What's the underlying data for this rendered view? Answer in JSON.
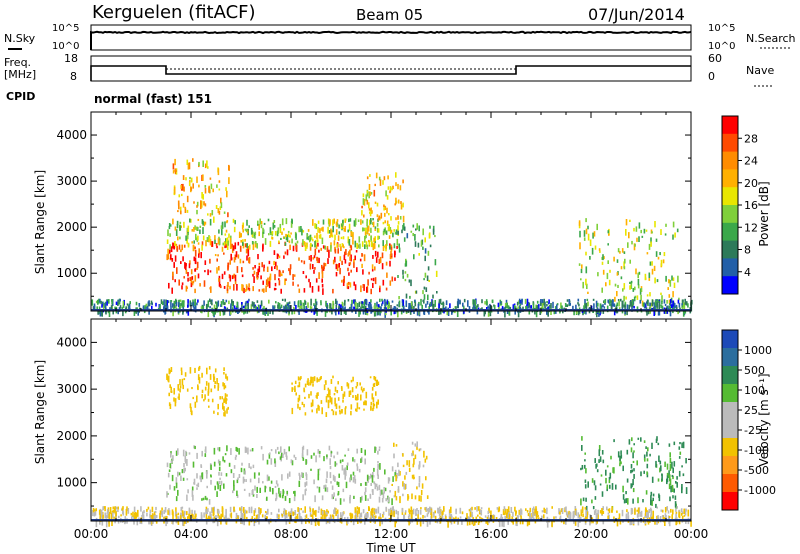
{
  "header": {
    "station": "Kerguelen (fitACF)",
    "beam": "Beam 05",
    "date": "07/Jun/2014"
  },
  "panels": {
    "nsky": {
      "left_label": "N.Sky",
      "right_label": "N.Search",
      "ticks_left": [
        "10^5",
        "10^0"
      ],
      "ticks_right": [
        "10^5",
        "10^0"
      ]
    },
    "freq": {
      "left_label_1": "Freq.",
      "left_label_2": "[MHz]",
      "right_label": "Nave",
      "ticks_left": [
        "18",
        "8"
      ],
      "ticks_right": [
        "60",
        "0"
      ]
    },
    "cpid": {
      "label": "CPID",
      "value": "normal (fast) 151"
    }
  },
  "colorbars": {
    "power": {
      "label": "Power [dB]",
      "ticks": [
        "28",
        "24",
        "20",
        "16",
        "12",
        "8",
        "4"
      ],
      "colors": [
        "#ff0000",
        "#ff4a00",
        "#ff8c00",
        "#ffb000",
        "#e8e600",
        "#7fd03a",
        "#3aa84a",
        "#2d7a5a",
        "#225fa8",
        "#0000ff"
      ]
    },
    "velocity": {
      "label": "Velocity [m s⁻¹]",
      "ticks": [
        "1000",
        "500",
        "100",
        "25",
        "-25",
        "-100",
        "-500",
        "-1000"
      ],
      "colors": [
        "#1d4ab8",
        "#2b6e9e",
        "#2d8a55",
        "#55bb33",
        "#bbbbbb",
        "#bbbbbb",
        "#f2c200",
        "#ff9a1a",
        "#ff5a00",
        "#ff0000"
      ]
    }
  },
  "axes": {
    "ylabel": "Slant Range [km]",
    "xlabel": "Time UT",
    "x_ticks": [
      "00:00",
      "04:00",
      "08:00",
      "12:00",
      "16:00",
      "20:00",
      "00:00"
    ],
    "y_ticks": [
      "4000",
      "3000",
      "2000",
      "1000"
    ]
  },
  "chart_data": [
    {
      "type": "heatmap",
      "title": "Power [dB]",
      "xlabel": "Time UT",
      "ylabel": "Slant Range [km]",
      "x_range_hours": [
        0,
        24
      ],
      "ylim": [
        180,
        4500
      ],
      "colorbar_ticks": [
        4,
        8,
        12,
        16,
        20,
        24,
        28
      ],
      "regions": [
        {
          "x": [
            3.0,
            12.3
          ],
          "y": [
            650,
            1700
          ],
          "power_db": 28
        },
        {
          "x": [
            3.0,
            12.3
          ],
          "y": [
            1600,
            2200
          ],
          "power_db": 16
        },
        {
          "x": [
            3.2,
            5.5
          ],
          "y": [
            2200,
            3500
          ],
          "power_db": 20
        },
        {
          "x": [
            10.8,
            12.5
          ],
          "y": [
            2200,
            3200
          ],
          "power_db": 20
        },
        {
          "x": [
            12.2,
            13.8
          ],
          "y": [
            500,
            2100
          ],
          "power_db": 12
        },
        {
          "x": [
            19.5,
            23.5
          ],
          "y": [
            350,
            2200
          ],
          "power_db": 16
        },
        {
          "x": [
            0,
            24
          ],
          "y": [
            180,
            450
          ],
          "power_db": 8
        }
      ]
    },
    {
      "type": "heatmap",
      "title": "Velocity [m s⁻¹]",
      "xlabel": "Time UT",
      "ylabel": "Slant Range [km]",
      "x_range_hours": [
        0,
        24
      ],
      "ylim": [
        180,
        4500
      ],
      "colorbar_ticks": [
        -1000,
        -500,
        -100,
        -25,
        25,
        100,
        500,
        1000
      ],
      "regions": [
        {
          "x": [
            3.0,
            12.3
          ],
          "y": [
            650,
            1800
          ],
          "velocity_ms": 0
        },
        {
          "x": [
            3.0,
            5.5
          ],
          "y": [
            2500,
            3500
          ],
          "velocity_ms": -300
        },
        {
          "x": [
            8.0,
            11.5
          ],
          "y": [
            2500,
            3300
          ],
          "velocity_ms": -250
        },
        {
          "x": [
            12.0,
            13.5
          ],
          "y": [
            700,
            2000
          ],
          "velocity_ms": -150
        },
        {
          "x": [
            19.5,
            23.8
          ],
          "y": [
            500,
            2000
          ],
          "velocity_ms": 150
        },
        {
          "x": [
            0,
            24
          ],
          "y": [
            180,
            500
          ],
          "velocity_ms": -100
        }
      ]
    }
  ]
}
